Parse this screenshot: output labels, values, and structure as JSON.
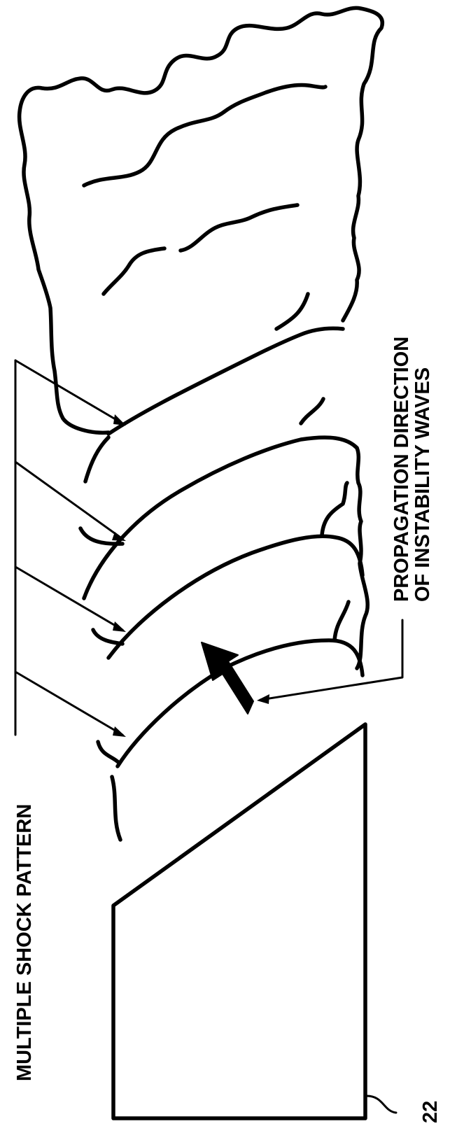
{
  "figure": {
    "label_shock_pattern": "MULTIPLE SHOCK PATTERN",
    "label_propagation_line1": "PROPAGATION DIRECTION",
    "label_propagation_line2": "OF INSTABILITY WAVES",
    "reference_numeral": "22"
  }
}
